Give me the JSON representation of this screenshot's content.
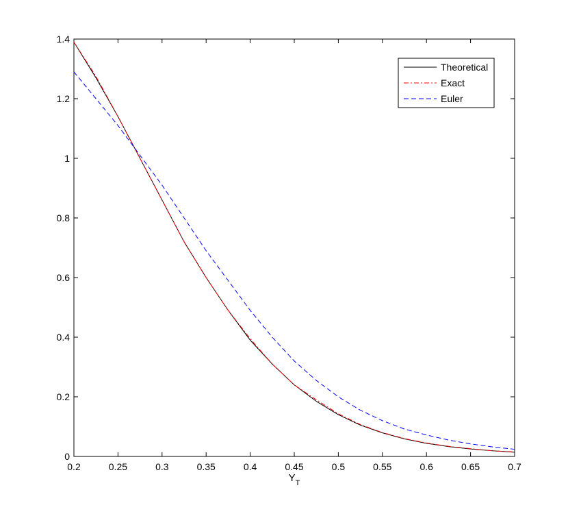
{
  "chart_data": {
    "type": "line",
    "title": "",
    "xlabel": "Y",
    "xlabel_subscript": "T",
    "ylabel": "",
    "xlim": [
      0.2,
      0.7
    ],
    "ylim": [
      0,
      1.4
    ],
    "xticks": [
      0.2,
      0.25,
      0.3,
      0.35,
      0.4,
      0.45,
      0.5,
      0.55,
      0.6,
      0.65,
      0.7
    ],
    "xtick_labels": [
      "0.2",
      "0.25",
      "0.3",
      "0.35",
      "0.4",
      "0.45",
      "0.5",
      "0.55",
      "0.6",
      "0.65",
      "0.7"
    ],
    "yticks": [
      0,
      0.2,
      0.4,
      0.6,
      0.8,
      1.0,
      1.2,
      1.4
    ],
    "ytick_labels": [
      "0",
      "0.2",
      "0.4",
      "0.6",
      "0.8",
      "1",
      "1.2",
      "1.4"
    ],
    "grid": false,
    "legend_position": "top-right",
    "x": [
      0.2,
      0.225,
      0.25,
      0.275,
      0.3,
      0.325,
      0.35,
      0.375,
      0.4,
      0.425,
      0.45,
      0.475,
      0.5,
      0.525,
      0.55,
      0.575,
      0.6,
      0.625,
      0.65,
      0.675,
      0.7
    ],
    "series": [
      {
        "name": "Theoretical",
        "color": "#000000",
        "dash": "solid",
        "values": [
          1.39,
          1.27,
          1.14,
          1.0,
          0.86,
          0.72,
          0.6,
          0.49,
          0.39,
          0.31,
          0.24,
          0.185,
          0.14,
          0.105,
          0.079,
          0.059,
          0.044,
          0.033,
          0.025,
          0.019,
          0.014
        ]
      },
      {
        "name": "Exact",
        "color": "#ff0000",
        "dash": "dashdot",
        "values": [
          1.39,
          1.275,
          1.14,
          1.0,
          0.86,
          0.72,
          0.6,
          0.49,
          0.395,
          0.31,
          0.24,
          0.19,
          0.143,
          0.107,
          0.08,
          0.06,
          0.045,
          0.034,
          0.026,
          0.019,
          0.015
        ]
      },
      {
        "name": "Euler",
        "color": "#0000ff",
        "dash": "dashed",
        "values": [
          1.29,
          1.2,
          1.11,
          1.01,
          0.91,
          0.8,
          0.69,
          0.59,
          0.49,
          0.4,
          0.32,
          0.255,
          0.2,
          0.155,
          0.12,
          0.092,
          0.072,
          0.055,
          0.042,
          0.032,
          0.024
        ]
      }
    ]
  }
}
